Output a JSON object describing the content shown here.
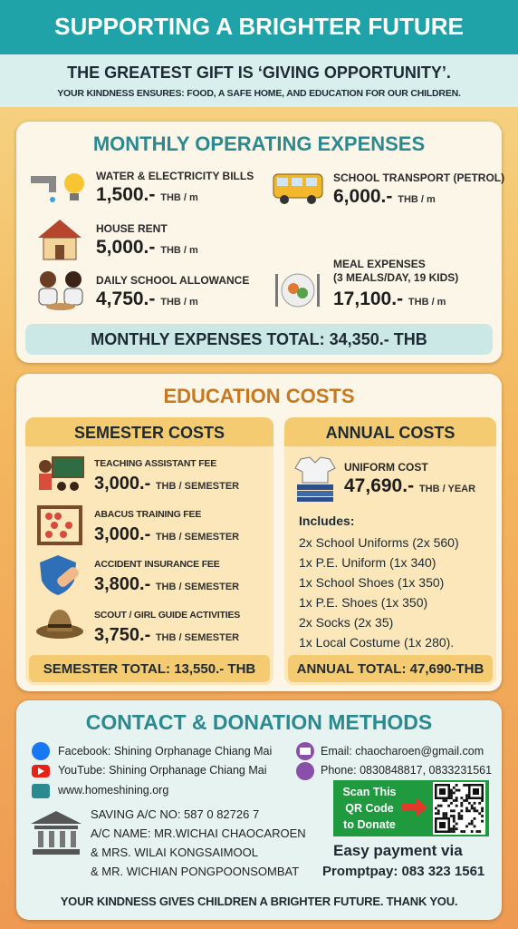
{
  "header": {
    "title": "SUPPORTING A BRIGHTER FUTURE",
    "subtitle": "THE GREATEST GIFT IS ‘GIVING OPPORTUNITY’.",
    "tagline": "YOUR KINDNESS ENSURES: FOOD, A SAFE HOME, AND EDUCATION FOR OUR CHILDREN."
  },
  "monthly": {
    "title": "MONTHLY OPERATING EXPENSES",
    "items": [
      {
        "label": "WATER & ELECTRICITY BILLS",
        "amount": "1,500.-",
        "unit": "THB / m"
      },
      {
        "label": "HOUSE RENT",
        "amount": "5,000.-",
        "unit": "THB / m"
      },
      {
        "label": "DAILY SCHOOL ALLOWANCE",
        "amount": "4,750.-",
        "unit": "THB / m"
      },
      {
        "label": "SCHOOL TRANSPORT (PETROL)",
        "amount": "6,000.-",
        "unit": "THB / m"
      },
      {
        "label": "MEAL EXPENSES",
        "note": "(3 MEALS/DAY, 19 KIDS)",
        "amount": "17,100.-",
        "unit": "THB / m"
      }
    ],
    "total": "MONTHLY EXPENSES TOTAL: 34,350.- THB"
  },
  "education": {
    "title": "EDUCATION COSTS",
    "semester": {
      "title": "SEMESTER COSTS",
      "items": [
        {
          "label": "TEACHING ASSISTANT FEE",
          "amount": "3,000.-",
          "unit": "THB / SEMESTER"
        },
        {
          "label": "ABACUS TRAINING FEE",
          "amount": "3,000.-",
          "unit": "THB / SEMESTER"
        },
        {
          "label": "ACCIDENT INSURANCE FEE",
          "amount": "3,800.-",
          "unit": "THB / SEMESTER"
        },
        {
          "label": "SCOUT / GIRL GUIDE ACTIVITIES",
          "amount": "3,750.-",
          "unit": "THB / SEMESTER"
        }
      ],
      "total": "SEMESTER TOTAL: 13,550.- THB"
    },
    "annual": {
      "title": "ANNUAL COSTS",
      "item": {
        "label": "UNIFORM COST",
        "amount": "47,690.-",
        "unit": "THB / YEAR"
      },
      "includes_title": "Includes:",
      "includes": [
        "2x School Uniforms (2x 560)",
        "1x P.E. Uniform (1x 340)",
        "1x School Shoes (1x 350)",
        "1x P.E. Shoes (1x 350)",
        "2x Socks (2x 35)",
        "1x Local Costume (1x 280)."
      ],
      "total": "ANNUAL TOTAL: 47,690-THB"
    }
  },
  "contact": {
    "title": "CONTACT & DONATION METHODS",
    "facebook": "Facebook: Shining Orphanage Chiang Mai",
    "youtube": "YouTube: Shining Orphanage Chiang Mai",
    "website": "www.homeshining.org",
    "email": "Email: chaocharoen@gmail.com",
    "phone": "Phone: 0830848817, 0833231561",
    "bank": {
      "account": "SAVING A/C NO: 587 0 82726 7",
      "names": [
        "A/C NAME: MR.WICHAI CHAOCAROEN",
        "& MRS. WILAI KONGSAIMOOL",
        "& MR. WICHIAN PONGPOONSOMBAT"
      ]
    },
    "qr": [
      "Scan This",
      "QR Code",
      "to Donate"
    ],
    "payment": [
      "Easy payment via",
      "Promptpay: 083 323 1561"
    ],
    "footer": "YOUR KINDNESS GIVES CHILDREN A BRIGHTER FUTURE. THANK YOU."
  }
}
